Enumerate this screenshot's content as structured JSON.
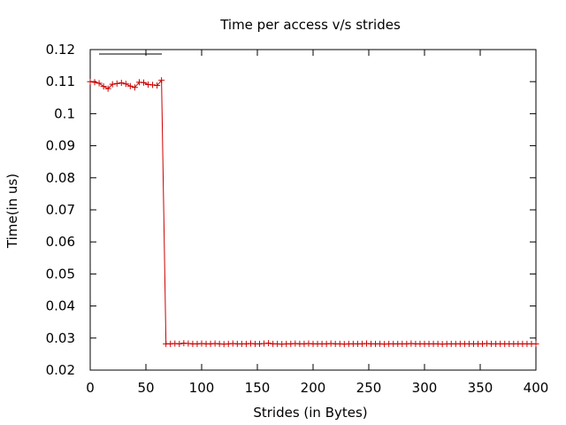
{
  "chart_data": {
    "type": "line",
    "title": "Time per access v/s strides",
    "xlabel": "Strides (in Bytes)",
    "ylabel": "Time(in us)",
    "xlim": [
      0,
      400
    ],
    "ylim": [
      0.02,
      0.12
    ],
    "xticks": [
      0,
      50,
      100,
      150,
      200,
      250,
      300,
      350,
      400
    ],
    "yticks": [
      0.02,
      0.03,
      0.04,
      0.05,
      0.06,
      0.07,
      0.08,
      0.09,
      0.1,
      0.11,
      0.12
    ],
    "grid": false,
    "legend": {
      "position": "top-left",
      "entries": [
        {
          "label": "",
          "color": "#000000"
        }
      ]
    },
    "series": [
      {
        "color": "#cc0000",
        "marker": "plus",
        "x_start": 0,
        "x_step": 4,
        "y": [
          0.11,
          0.1098,
          0.1095,
          0.1085,
          0.1078,
          0.1092,
          0.1094,
          0.1096,
          0.1093,
          0.1086,
          0.1082,
          0.1098,
          0.1097,
          0.1091,
          0.109,
          0.1088,
          0.1104,
          0.0282,
          0.0282,
          0.0283,
          0.0282,
          0.0284,
          0.0283,
          0.0282,
          0.0282,
          0.0283,
          0.0282,
          0.0282,
          0.0283,
          0.0282,
          0.0281,
          0.0282,
          0.0283,
          0.0282,
          0.0282,
          0.0282,
          0.0283,
          0.0282,
          0.0282,
          0.0283,
          0.0284,
          0.0282,
          0.0282,
          0.0281,
          0.0282,
          0.0282,
          0.0283,
          0.0282,
          0.0282,
          0.0283,
          0.0282,
          0.0282,
          0.0282,
          0.0282,
          0.0283,
          0.0282,
          0.0282,
          0.0281,
          0.0282,
          0.0282,
          0.0282,
          0.0282,
          0.0283,
          0.0282,
          0.0282,
          0.0282,
          0.0281,
          0.0282,
          0.0282,
          0.0282,
          0.0282,
          0.0282,
          0.0283,
          0.0282,
          0.0282,
          0.0282,
          0.0282,
          0.0282,
          0.0282,
          0.0281,
          0.0282,
          0.0282,
          0.0282,
          0.0282,
          0.0282,
          0.0282,
          0.0282,
          0.0282,
          0.0282,
          0.0283,
          0.0282,
          0.0282,
          0.0282,
          0.0282,
          0.0282,
          0.0282,
          0.0282,
          0.0282,
          0.0282,
          0.0282,
          0.0282
        ]
      }
    ]
  }
}
